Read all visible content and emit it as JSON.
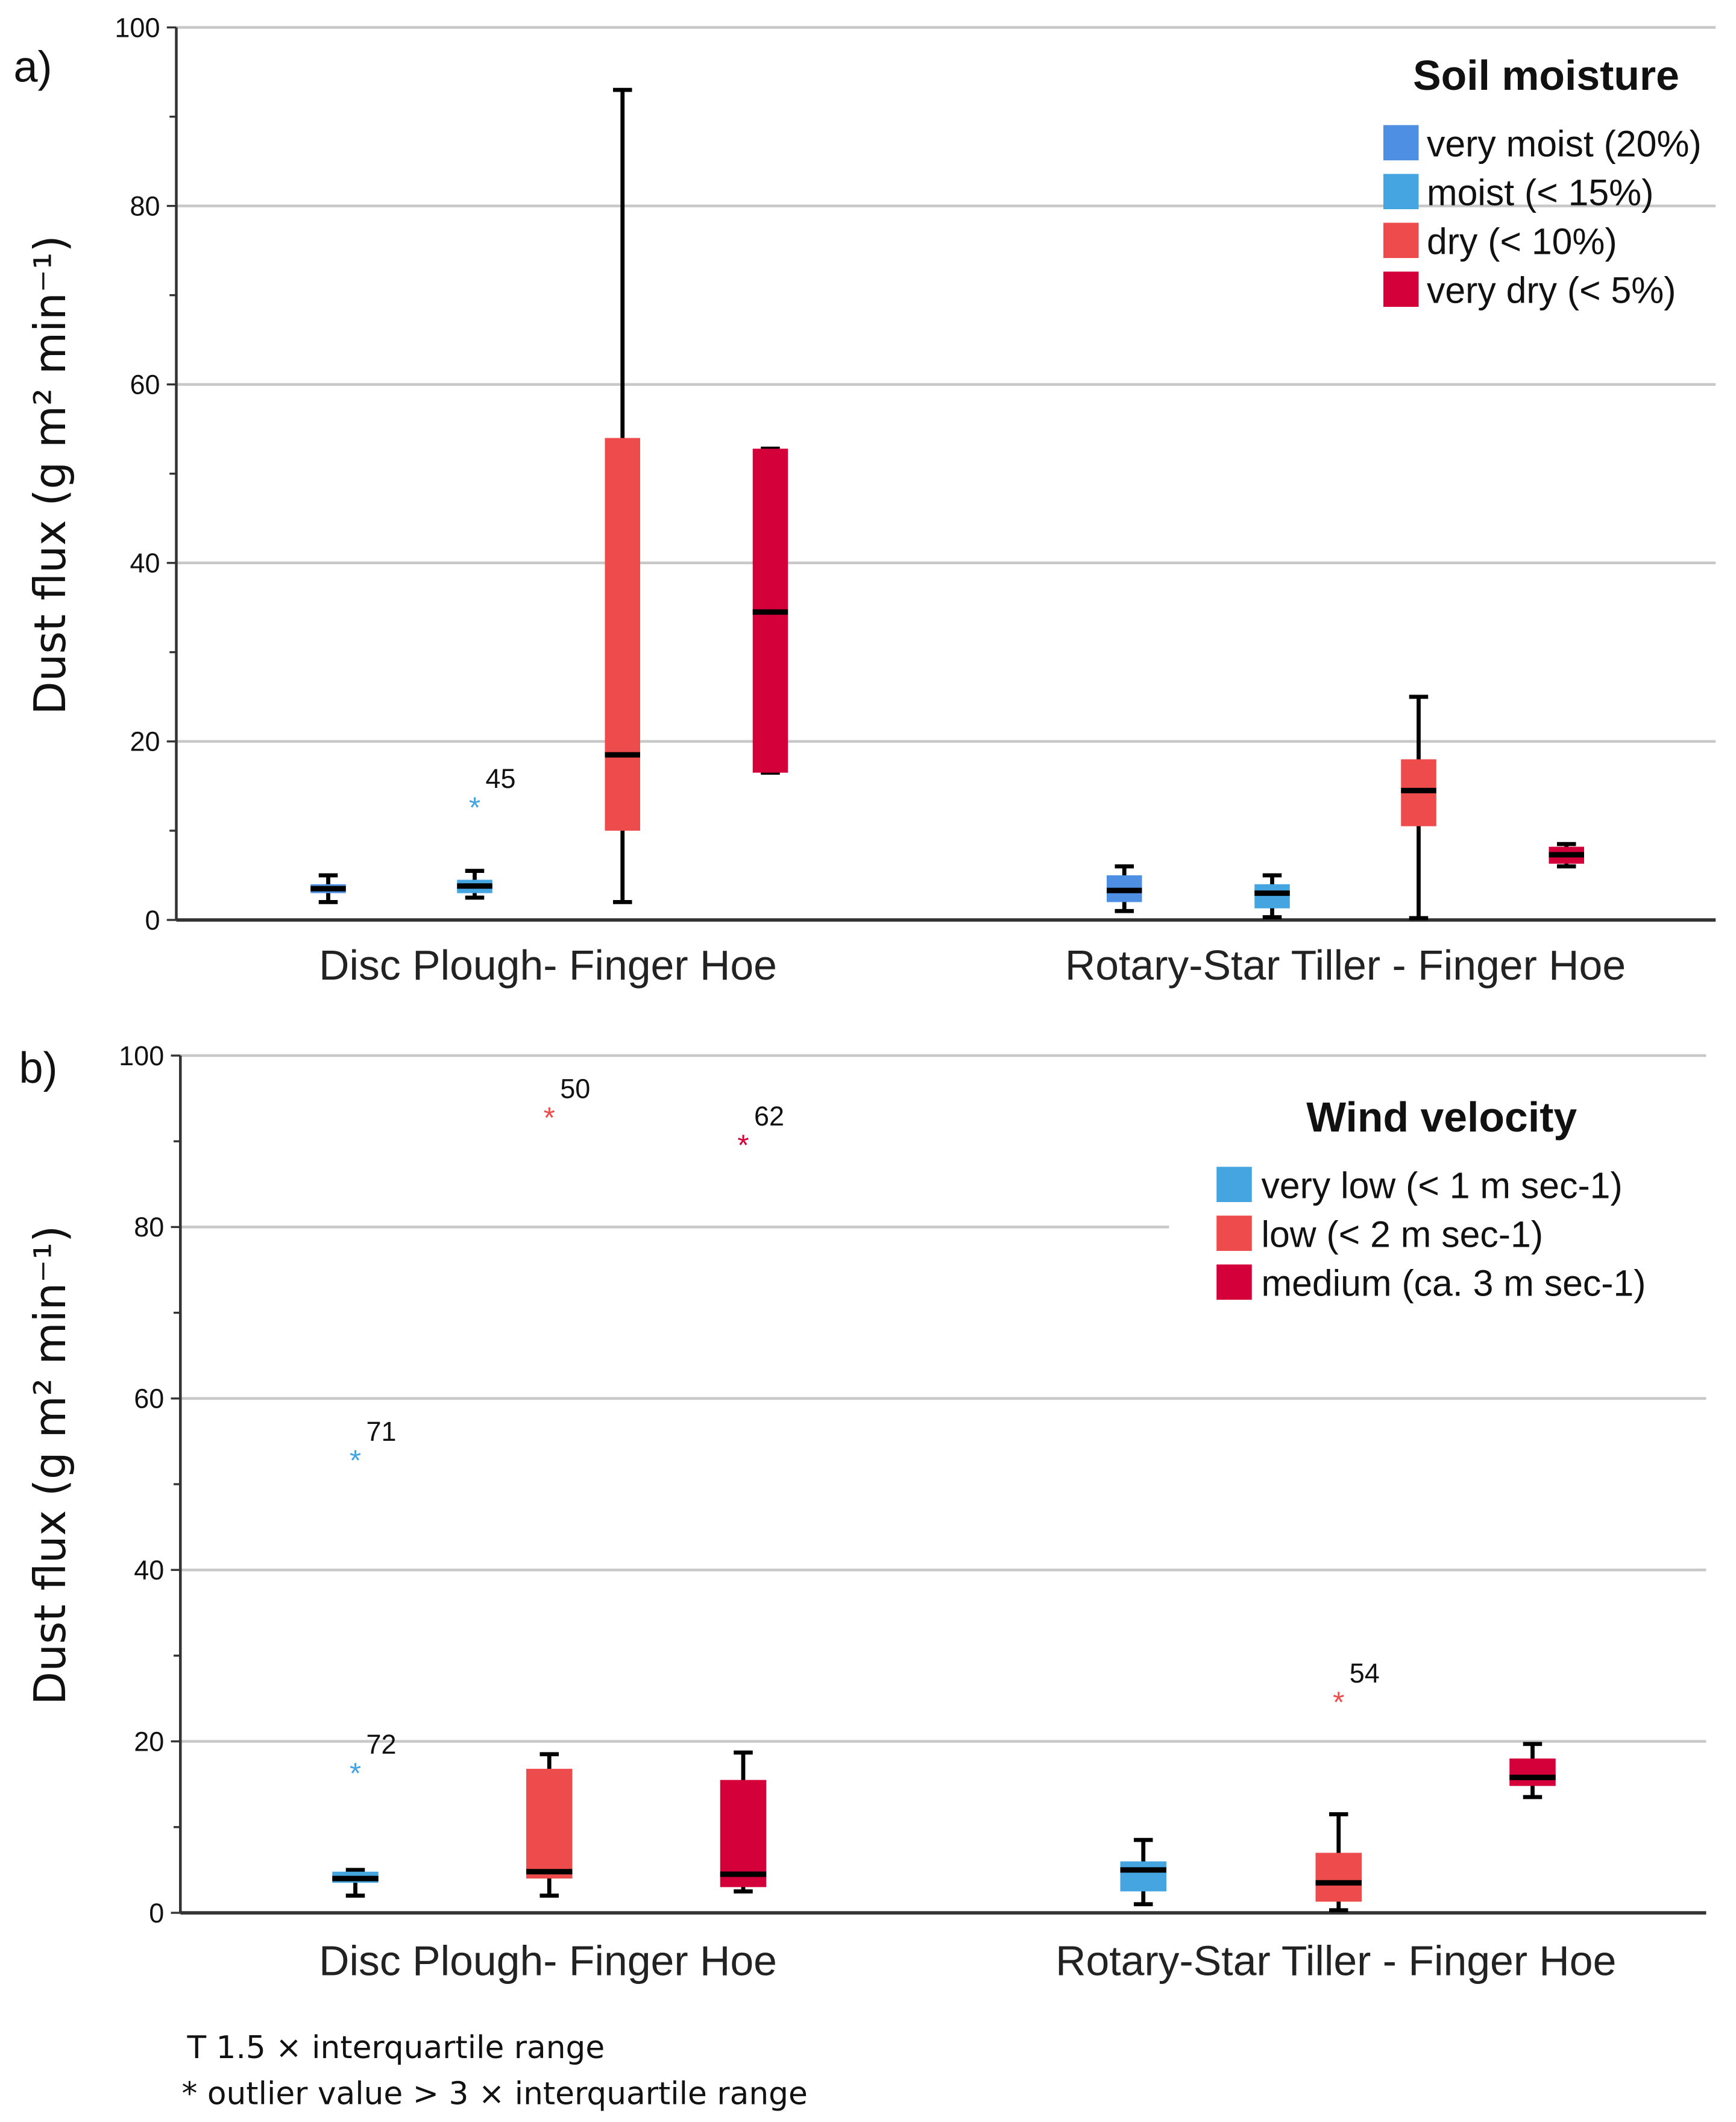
{
  "chart_data": [
    {
      "type": "box",
      "panel_label": "a)",
      "ylabel": "Dust flux (g m² min⁻¹)",
      "ylim": [
        0,
        100
      ],
      "yticks": [
        "0",
        "20",
        "40",
        "60",
        "80",
        "100"
      ],
      "grid": true,
      "categories": [
        "Disc Plough- Finger Hoe",
        "Rotary-Star Tiller - Finger Hoe"
      ],
      "legend": {
        "title": "Soil moisture",
        "placement": "top-right",
        "items": [
          {
            "label": "very moist (20%)",
            "color": "#4f8fe3"
          },
          {
            "label": "moist (< 15%)",
            "color": "#45a5e0"
          },
          {
            "label": "dry (< 10%)",
            "color": "#ee4c4c"
          },
          {
            "label": "very dry (< 5%)",
            "color": "#d4003a"
          }
        ]
      },
      "series": [
        {
          "name": "very moist (20%)",
          "boxes": [
            {
              "min": 2,
              "q1": 3,
              "median": 3.5,
              "q3": 4,
              "max": 5
            },
            {
              "min": 1,
              "q1": 2,
              "median": 3.3,
              "q3": 5,
              "max": 6
            }
          ]
        },
        {
          "name": "moist (< 15%)",
          "boxes": [
            {
              "min": 2.5,
              "q1": 3,
              "median": 3.8,
              "q3": 4.5,
              "max": 5.5,
              "outliers": [
                {
                  "value": 12.8,
                  "label": "45"
                }
              ]
            },
            {
              "min": 0.3,
              "q1": 1.3,
              "median": 3,
              "q3": 4,
              "max": 5
            }
          ]
        },
        {
          "name": "dry (< 10%)",
          "boxes": [
            {
              "min": 2,
              "q1": 10,
              "median": 18.5,
              "q3": 54,
              "max": 93
            },
            {
              "min": 0.2,
              "q1": 10.5,
              "median": 14.5,
              "q3": 18,
              "max": 25
            }
          ]
        },
        {
          "name": "very dry (< 5%)",
          "boxes": [
            {
              "min": 16.5,
              "q1": 16.5,
              "median": 34.5,
              "q3": 52.8,
              "max": 52.8
            },
            {
              "min": 6,
              "q1": 6.3,
              "median": 7.3,
              "q3": 8.2,
              "max": 8.5
            }
          ]
        }
      ]
    },
    {
      "type": "box",
      "panel_label": "b)",
      "ylabel": "Dust flux (g m² min⁻¹)",
      "ylim": [
        0,
        100
      ],
      "yticks": [
        "0",
        "20",
        "40",
        "60",
        "80",
        "100"
      ],
      "grid": true,
      "categories": [
        "Disc Plough- Finger Hoe",
        "Rotary-Star Tiller - Finger Hoe"
      ],
      "legend": {
        "title": "Wind velocity",
        "placement": "top-right",
        "items": [
          {
            "label": "very low (< 1 m sec-1)",
            "color": "#45a5e0"
          },
          {
            "label": "low (< 2 m sec-1)",
            "color": "#ee4c4c"
          },
          {
            "label": "medium (ca. 3 m sec-1)",
            "color": "#d4003a"
          }
        ]
      },
      "series": [
        {
          "name": "very low (< 1 m sec-1)",
          "boxes": [
            {
              "min": 2,
              "q1": 3.5,
              "median": 4,
              "q3": 4.8,
              "max": 5,
              "outliers": [
                {
                  "value": 53,
                  "label": "71"
                },
                {
                  "value": 16.5,
                  "label": "72"
                }
              ]
            },
            {
              "min": 1,
              "q1": 2.5,
              "median": 5,
              "q3": 6,
              "max": 8.5
            }
          ]
        },
        {
          "name": "low (< 2 m sec-1)",
          "boxes": [
            {
              "min": 2,
              "q1": 4,
              "median": 4.8,
              "q3": 16.8,
              "max": 18.5,
              "outliers": [
                {
                  "value": 93,
                  "label": "50"
                }
              ]
            },
            {
              "min": 0.3,
              "q1": 1.3,
              "median": 3.5,
              "q3": 7,
              "max": 11.5,
              "outliers": [
                {
                  "value": 24.8,
                  "label": "54"
                }
              ]
            }
          ]
        },
        {
          "name": "medium (ca. 3 m sec-1)",
          "boxes": [
            {
              "min": 2.5,
              "q1": 3,
              "median": 4.5,
              "q3": 15.5,
              "max": 18.7,
              "outliers": [
                {
                  "value": 89.8,
                  "label": "62"
                }
              ]
            },
            {
              "min": 13.5,
              "q1": 14.8,
              "median": 15.8,
              "q3": 18,
              "max": 19.7
            }
          ]
        }
      ]
    }
  ],
  "footnotes": [
    "T 1.5 × interquartile range",
    "* outlier value > 3 × interquartile range"
  ]
}
